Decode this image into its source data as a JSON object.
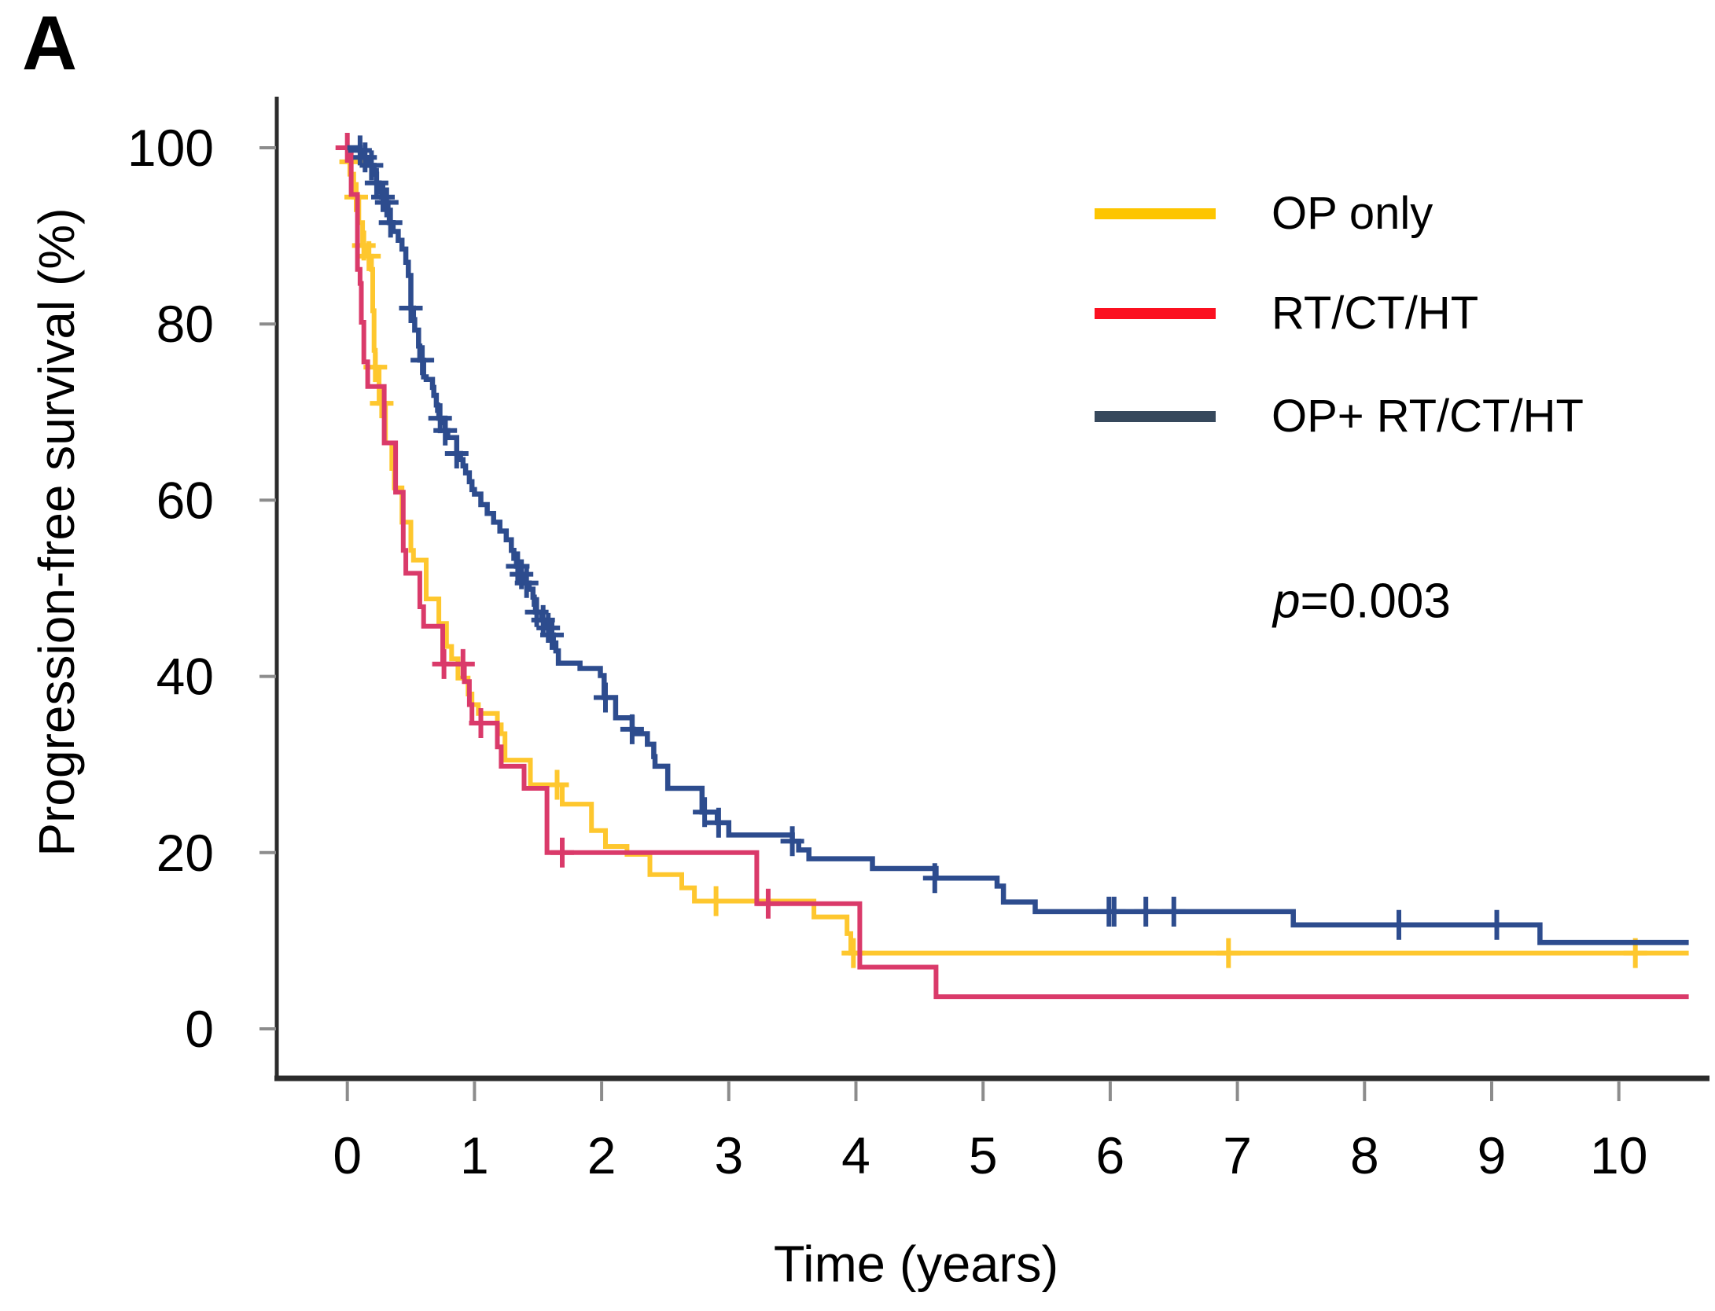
{
  "panel_label": "A",
  "annotation": {
    "p_symbol": "p",
    "p_rest": "=0.003",
    "full_text": "p=0.003"
  },
  "legend": {
    "items": [
      {
        "label": "OP only",
        "color": "#fdc500"
      },
      {
        "label": "RT/CT/HT",
        "color": "#fb1020"
      },
      {
        "label": "OP+ RT/CT/HT",
        "color": "#36485c"
      }
    ]
  },
  "layout_colors": {
    "axis_line": "#2b2b2b",
    "tick_mark": "#8c8c8c",
    "text": "#000000",
    "background": "#ffffff"
  },
  "chart_data": {
    "type": "line",
    "subtype": "kaplan-meier-step",
    "title": "",
    "xlabel": "Time (years)",
    "ylabel": "Progression-free survival (%)",
    "xlim": [
      0,
      10.55
    ],
    "ylim": [
      0,
      100
    ],
    "x_ticks": [
      0,
      1,
      2,
      3,
      4,
      5,
      6,
      7,
      8,
      9,
      10
    ],
    "y_ticks": [
      0,
      20,
      40,
      60,
      80,
      100
    ],
    "grid": false,
    "legend_position": "upper right",
    "p_value": "p=0.003",
    "series": [
      {
        "name": "OP only",
        "curve_color": "#fec72e",
        "line_width": 6,
        "points": [
          [
            0,
            100
          ],
          [
            0.02,
            97.0
          ],
          [
            0.05,
            94.4
          ],
          [
            0.09,
            91.5
          ],
          [
            0.12,
            88.9
          ],
          [
            0.15,
            87.7
          ],
          [
            0.19,
            86.2
          ],
          [
            0.2,
            81.5
          ],
          [
            0.21,
            77.0
          ],
          [
            0.22,
            75.1
          ],
          [
            0.25,
            71.0
          ],
          [
            0.3,
            66.5
          ],
          [
            0.35,
            63.6
          ],
          [
            0.37,
            61.4
          ],
          [
            0.43,
            57.5
          ],
          [
            0.5,
            54.3
          ],
          [
            0.52,
            53.2
          ],
          [
            0.62,
            48.8
          ],
          [
            0.72,
            46.0
          ],
          [
            0.78,
            43.4
          ],
          [
            0.82,
            42.0
          ],
          [
            0.87,
            39.8
          ],
          [
            0.95,
            38.0
          ],
          [
            0.98,
            36.8
          ],
          [
            1.03,
            35.8
          ],
          [
            1.18,
            34.5
          ],
          [
            1.21,
            33.5
          ],
          [
            1.24,
            30.5
          ],
          [
            1.44,
            27.7
          ],
          [
            1.69,
            25.5
          ],
          [
            1.92,
            22.5
          ],
          [
            2.03,
            20.7
          ],
          [
            2.2,
            19.8
          ],
          [
            2.38,
            17.5
          ],
          [
            2.63,
            16.0
          ],
          [
            2.73,
            14.5
          ],
          [
            3.67,
            12.7
          ],
          [
            3.93,
            10.8
          ],
          [
            3.96,
            8.6
          ]
        ],
        "censors": [
          [
            0.03,
            98.4
          ],
          [
            0.07,
            94.4
          ],
          [
            0.13,
            88.9
          ],
          [
            0.17,
            87.7
          ],
          [
            0.22,
            75.1
          ],
          [
            0.27,
            71.0
          ],
          [
            1.65,
            27.7
          ],
          [
            2.9,
            14.5
          ],
          [
            3.98,
            8.6
          ],
          [
            6.93,
            8.6
          ],
          [
            10.13,
            8.6
          ]
        ]
      },
      {
        "name": "RT/CT/HT",
        "curve_color": "#da3a6a",
        "line_width": 6,
        "points": [
          [
            0,
            100
          ],
          [
            0.03,
            94.7
          ],
          [
            0.08,
            86.2
          ],
          [
            0.1,
            84.6
          ],
          [
            0.11,
            80.2
          ],
          [
            0.13,
            75.7
          ],
          [
            0.16,
            72.9
          ],
          [
            0.29,
            66.5
          ],
          [
            0.38,
            60.9
          ],
          [
            0.44,
            54.3
          ],
          [
            0.46,
            51.7
          ],
          [
            0.57,
            47.9
          ],
          [
            0.6,
            45.7
          ],
          [
            0.75,
            41.4
          ],
          [
            0.92,
            39.4
          ],
          [
            0.96,
            36.8
          ],
          [
            0.98,
            34.7
          ],
          [
            1.18,
            32.0
          ],
          [
            1.21,
            29.8
          ],
          [
            1.39,
            27.3
          ],
          [
            1.57,
            20.0
          ],
          [
            3.22,
            14.2
          ],
          [
            4.03,
            7.0
          ],
          [
            4.63,
            3.65
          ]
        ],
        "censors": [
          [
            0.0,
            100
          ],
          [
            0.76,
            41.4
          ],
          [
            0.91,
            41.4
          ],
          [
            1.05,
            34.7
          ],
          [
            1.69,
            20.0
          ],
          [
            3.31,
            14.2
          ]
        ]
      },
      {
        "name": "OP+ RT/CT/HT",
        "curve_color": "#2d4c8e",
        "line_width": 6.5,
        "points": [
          [
            0,
            100
          ],
          [
            0.1,
            99.7
          ],
          [
            0.13,
            98.9
          ],
          [
            0.17,
            98.0
          ],
          [
            0.21,
            97.0
          ],
          [
            0.23,
            96.0
          ],
          [
            0.25,
            95.0
          ],
          [
            0.27,
            94.4
          ],
          [
            0.3,
            93.8
          ],
          [
            0.32,
            92.9
          ],
          [
            0.33,
            91.5
          ],
          [
            0.36,
            90.5
          ],
          [
            0.4,
            89.5
          ],
          [
            0.43,
            88.5
          ],
          [
            0.46,
            87.0
          ],
          [
            0.48,
            85.5
          ],
          [
            0.5,
            81.8
          ],
          [
            0.52,
            80.5
          ],
          [
            0.53,
            79.3
          ],
          [
            0.56,
            77.5
          ],
          [
            0.57,
            75.9
          ],
          [
            0.6,
            74.0
          ],
          [
            0.62,
            73.7
          ],
          [
            0.67,
            72.8
          ],
          [
            0.68,
            71.9
          ],
          [
            0.7,
            70.8
          ],
          [
            0.71,
            70.2
          ],
          [
            0.72,
            69.3
          ],
          [
            0.74,
            68.8
          ],
          [
            0.77,
            67.9
          ],
          [
            0.79,
            67.1
          ],
          [
            0.86,
            65.3
          ],
          [
            0.89,
            64.6
          ],
          [
            0.91,
            63.9
          ],
          [
            0.93,
            63.1
          ],
          [
            0.96,
            62.1
          ],
          [
            0.98,
            61.2
          ],
          [
            1.0,
            60.7
          ],
          [
            1.05,
            59.5
          ],
          [
            1.1,
            58.5
          ],
          [
            1.15,
            57.5
          ],
          [
            1.2,
            56.5
          ],
          [
            1.25,
            55.5
          ],
          [
            1.29,
            54.3
          ],
          [
            1.31,
            53.4
          ],
          [
            1.33,
            52.5
          ],
          [
            1.36,
            51.6
          ],
          [
            1.4,
            50.6
          ],
          [
            1.43,
            49.9
          ],
          [
            1.46,
            49.0
          ],
          [
            1.47,
            48.2
          ],
          [
            1.48,
            47.3
          ],
          [
            1.53,
            46.4
          ],
          [
            1.57,
            45.5
          ],
          [
            1.6,
            44.7
          ],
          [
            1.62,
            43.8
          ],
          [
            1.64,
            42.9
          ],
          [
            1.66,
            41.5
          ],
          [
            1.83,
            40.9
          ],
          [
            1.99,
            40.1
          ],
          [
            2.02,
            37.6
          ],
          [
            2.11,
            35.3
          ],
          [
            2.24,
            34.0
          ],
          [
            2.25,
            33.5
          ],
          [
            2.36,
            32.3
          ],
          [
            2.41,
            30.9
          ],
          [
            2.42,
            29.8
          ],
          [
            2.52,
            27.3
          ],
          [
            2.79,
            24.6
          ],
          [
            2.91,
            23.4
          ],
          [
            3.0,
            22.0
          ],
          [
            3.5,
            21.3
          ],
          [
            3.55,
            20.3
          ],
          [
            3.63,
            19.3
          ],
          [
            4.13,
            18.2
          ],
          [
            4.63,
            17.1
          ],
          [
            5.11,
            16.2
          ],
          [
            5.16,
            14.4
          ],
          [
            5.41,
            13.3
          ],
          [
            7.44,
            11.8
          ],
          [
            9.38,
            9.8
          ]
        ],
        "censors": [
          [
            0.1,
            99.7
          ],
          [
            0.14,
            98.9
          ],
          [
            0.19,
            98.0
          ],
          [
            0.23,
            96.0
          ],
          [
            0.28,
            94.4
          ],
          [
            0.31,
            93.8
          ],
          [
            0.34,
            91.5
          ],
          [
            0.5,
            81.8
          ],
          [
            0.59,
            75.9
          ],
          [
            0.73,
            69.3
          ],
          [
            0.77,
            67.9
          ],
          [
            0.86,
            65.3
          ],
          [
            1.34,
            52.5
          ],
          [
            1.37,
            51.6
          ],
          [
            1.41,
            50.6
          ],
          [
            1.49,
            47.3
          ],
          [
            1.54,
            46.4
          ],
          [
            1.58,
            45.5
          ],
          [
            1.61,
            44.7
          ],
          [
            2.03,
            37.6
          ],
          [
            2.24,
            34.0
          ],
          [
            2.81,
            24.6
          ],
          [
            2.92,
            23.4
          ],
          [
            3.5,
            21.3
          ],
          [
            4.62,
            17.1
          ],
          [
            5.99,
            13.3
          ],
          [
            6.03,
            13.3
          ],
          [
            6.28,
            13.3
          ],
          [
            6.5,
            13.3
          ],
          [
            8.27,
            11.8
          ],
          [
            9.04,
            11.8
          ]
        ]
      }
    ]
  }
}
